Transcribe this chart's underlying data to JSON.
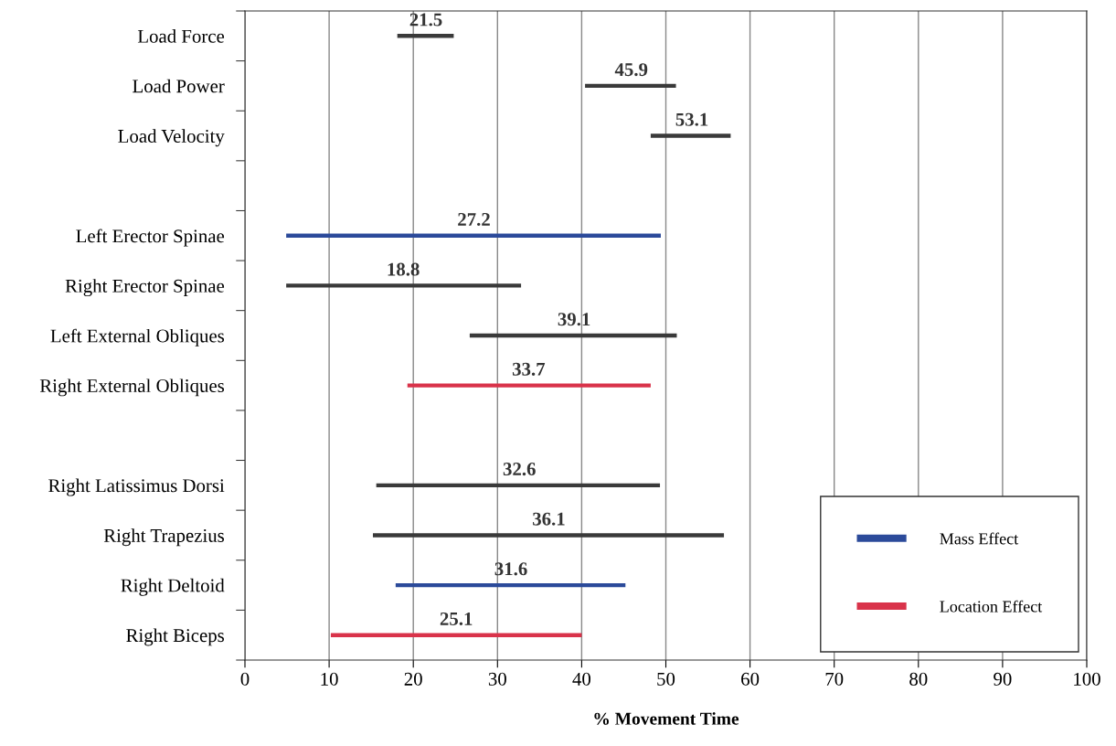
{
  "chart_data": {
    "type": "bar",
    "orientation": "horizontal",
    "xlabel": "% Movement Time",
    "categories": [
      "Load Force",
      "Load Power",
      "Load Velocity",
      null,
      "Left Erector Spinae",
      "Right Erector Spinae",
      "Left External Obliques",
      "Right External Obliques",
      null,
      "Right Latissimus Dorsi",
      "Right Trapezius",
      "Right Deltoid",
      "Right Biceps"
    ],
    "series": [
      {
        "color": "#3a3a3a",
        "base": [
          18.1,
          40.4,
          48.2,
          null,
          null,
          4.9,
          26.7,
          null,
          null,
          15.6,
          15.2,
          null,
          null
        ],
        "values": [
          6.7,
          10.8,
          9.5,
          null,
          null,
          27.9,
          24.6,
          null,
          null,
          33.7,
          41.7,
          null,
          null
        ]
      },
      {
        "name": "Mass Effect",
        "color": "#2b4a9a",
        "base": [
          null,
          null,
          null,
          null,
          4.9,
          null,
          null,
          null,
          null,
          null,
          null,
          17.9,
          null
        ],
        "values": [
          null,
          null,
          null,
          null,
          44.5,
          null,
          null,
          null,
          null,
          null,
          null,
          27.3,
          null
        ]
      },
      {
        "name": "Location Effect",
        "color": "#d9334a",
        "base": [
          null,
          null,
          null,
          null,
          null,
          null,
          null,
          19.3,
          null,
          null,
          null,
          null,
          10.2
        ],
        "values": [
          null,
          null,
          null,
          null,
          null,
          null,
          null,
          28.9,
          null,
          null,
          null,
          null,
          29.8
        ]
      }
    ],
    "annotations": [
      {
        "text": "21.5",
        "x": 21.5,
        "y": "Load Force"
      },
      {
        "text": "45.9",
        "x": 45.9,
        "y": "Load Power"
      },
      {
        "text": "53.1",
        "x": 53.1,
        "y": "Load Velocity"
      },
      {
        "text": "27.2",
        "x": 27.2,
        "y": "Left Erector Spinae"
      },
      {
        "text": "18.8",
        "x": 18.8,
        "y": "Right Erector Spinae"
      },
      {
        "text": "39.1",
        "x": 39.1,
        "y": "Left External Obliques"
      },
      {
        "text": "33.7",
        "x": 33.7,
        "y": "Right External Obliques"
      },
      {
        "text": "32.6",
        "x": 32.6,
        "y": "Right Latissimus Dorsi"
      },
      {
        "text": "36.1",
        "x": 36.1,
        "y": "Right Trapezius"
      },
      {
        "text": "31.6",
        "x": 31.6,
        "y": "Right Deltoid"
      },
      {
        "text": "25.1",
        "x": 25.1,
        "y": "Right Biceps"
      }
    ],
    "xlim": [
      0,
      100
    ],
    "xticks": [
      0,
      10,
      20,
      30,
      40,
      50,
      60,
      70,
      80,
      90,
      100
    ],
    "grid": "x",
    "legend": "bottom right"
  }
}
